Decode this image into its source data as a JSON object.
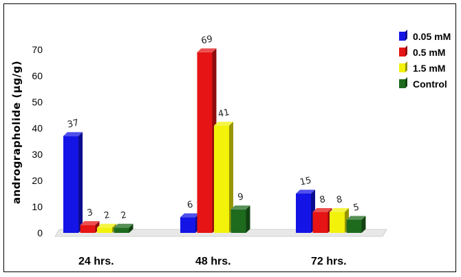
{
  "chart_data": {
    "type": "bar",
    "title": "",
    "xlabel": "",
    "ylabel": "andrographolide (µg/g)",
    "ylim": [
      0,
      70
    ],
    "yticks": [
      "0",
      "10",
      "20",
      "30",
      "40",
      "50",
      "60",
      "70"
    ],
    "categories": [
      "24 hrs.",
      "48 hrs.",
      "72 hrs."
    ],
    "series": [
      {
        "name": "0.05 mM",
        "color": "#1414e6",
        "values": [
          37,
          6,
          15
        ]
      },
      {
        "name": "0.5 mM",
        "color": "#e61414",
        "values": [
          3,
          69,
          8
        ]
      },
      {
        "name": "1.5 mM",
        "color": "#f2f20a",
        "values": [
          2,
          41,
          8
        ]
      },
      {
        "name": "Control",
        "color": "#1e6b1e",
        "values": [
          2,
          9,
          5
        ]
      }
    ],
    "data_labels": [
      [
        "37",
        "6",
        "15"
      ],
      [
        "3",
        "69",
        "8"
      ],
      [
        "2",
        "41",
        "8"
      ],
      [
        "2",
        "9",
        "5"
      ]
    ],
    "legend": "top-right",
    "grid": false,
    "style": "3d-bar"
  }
}
